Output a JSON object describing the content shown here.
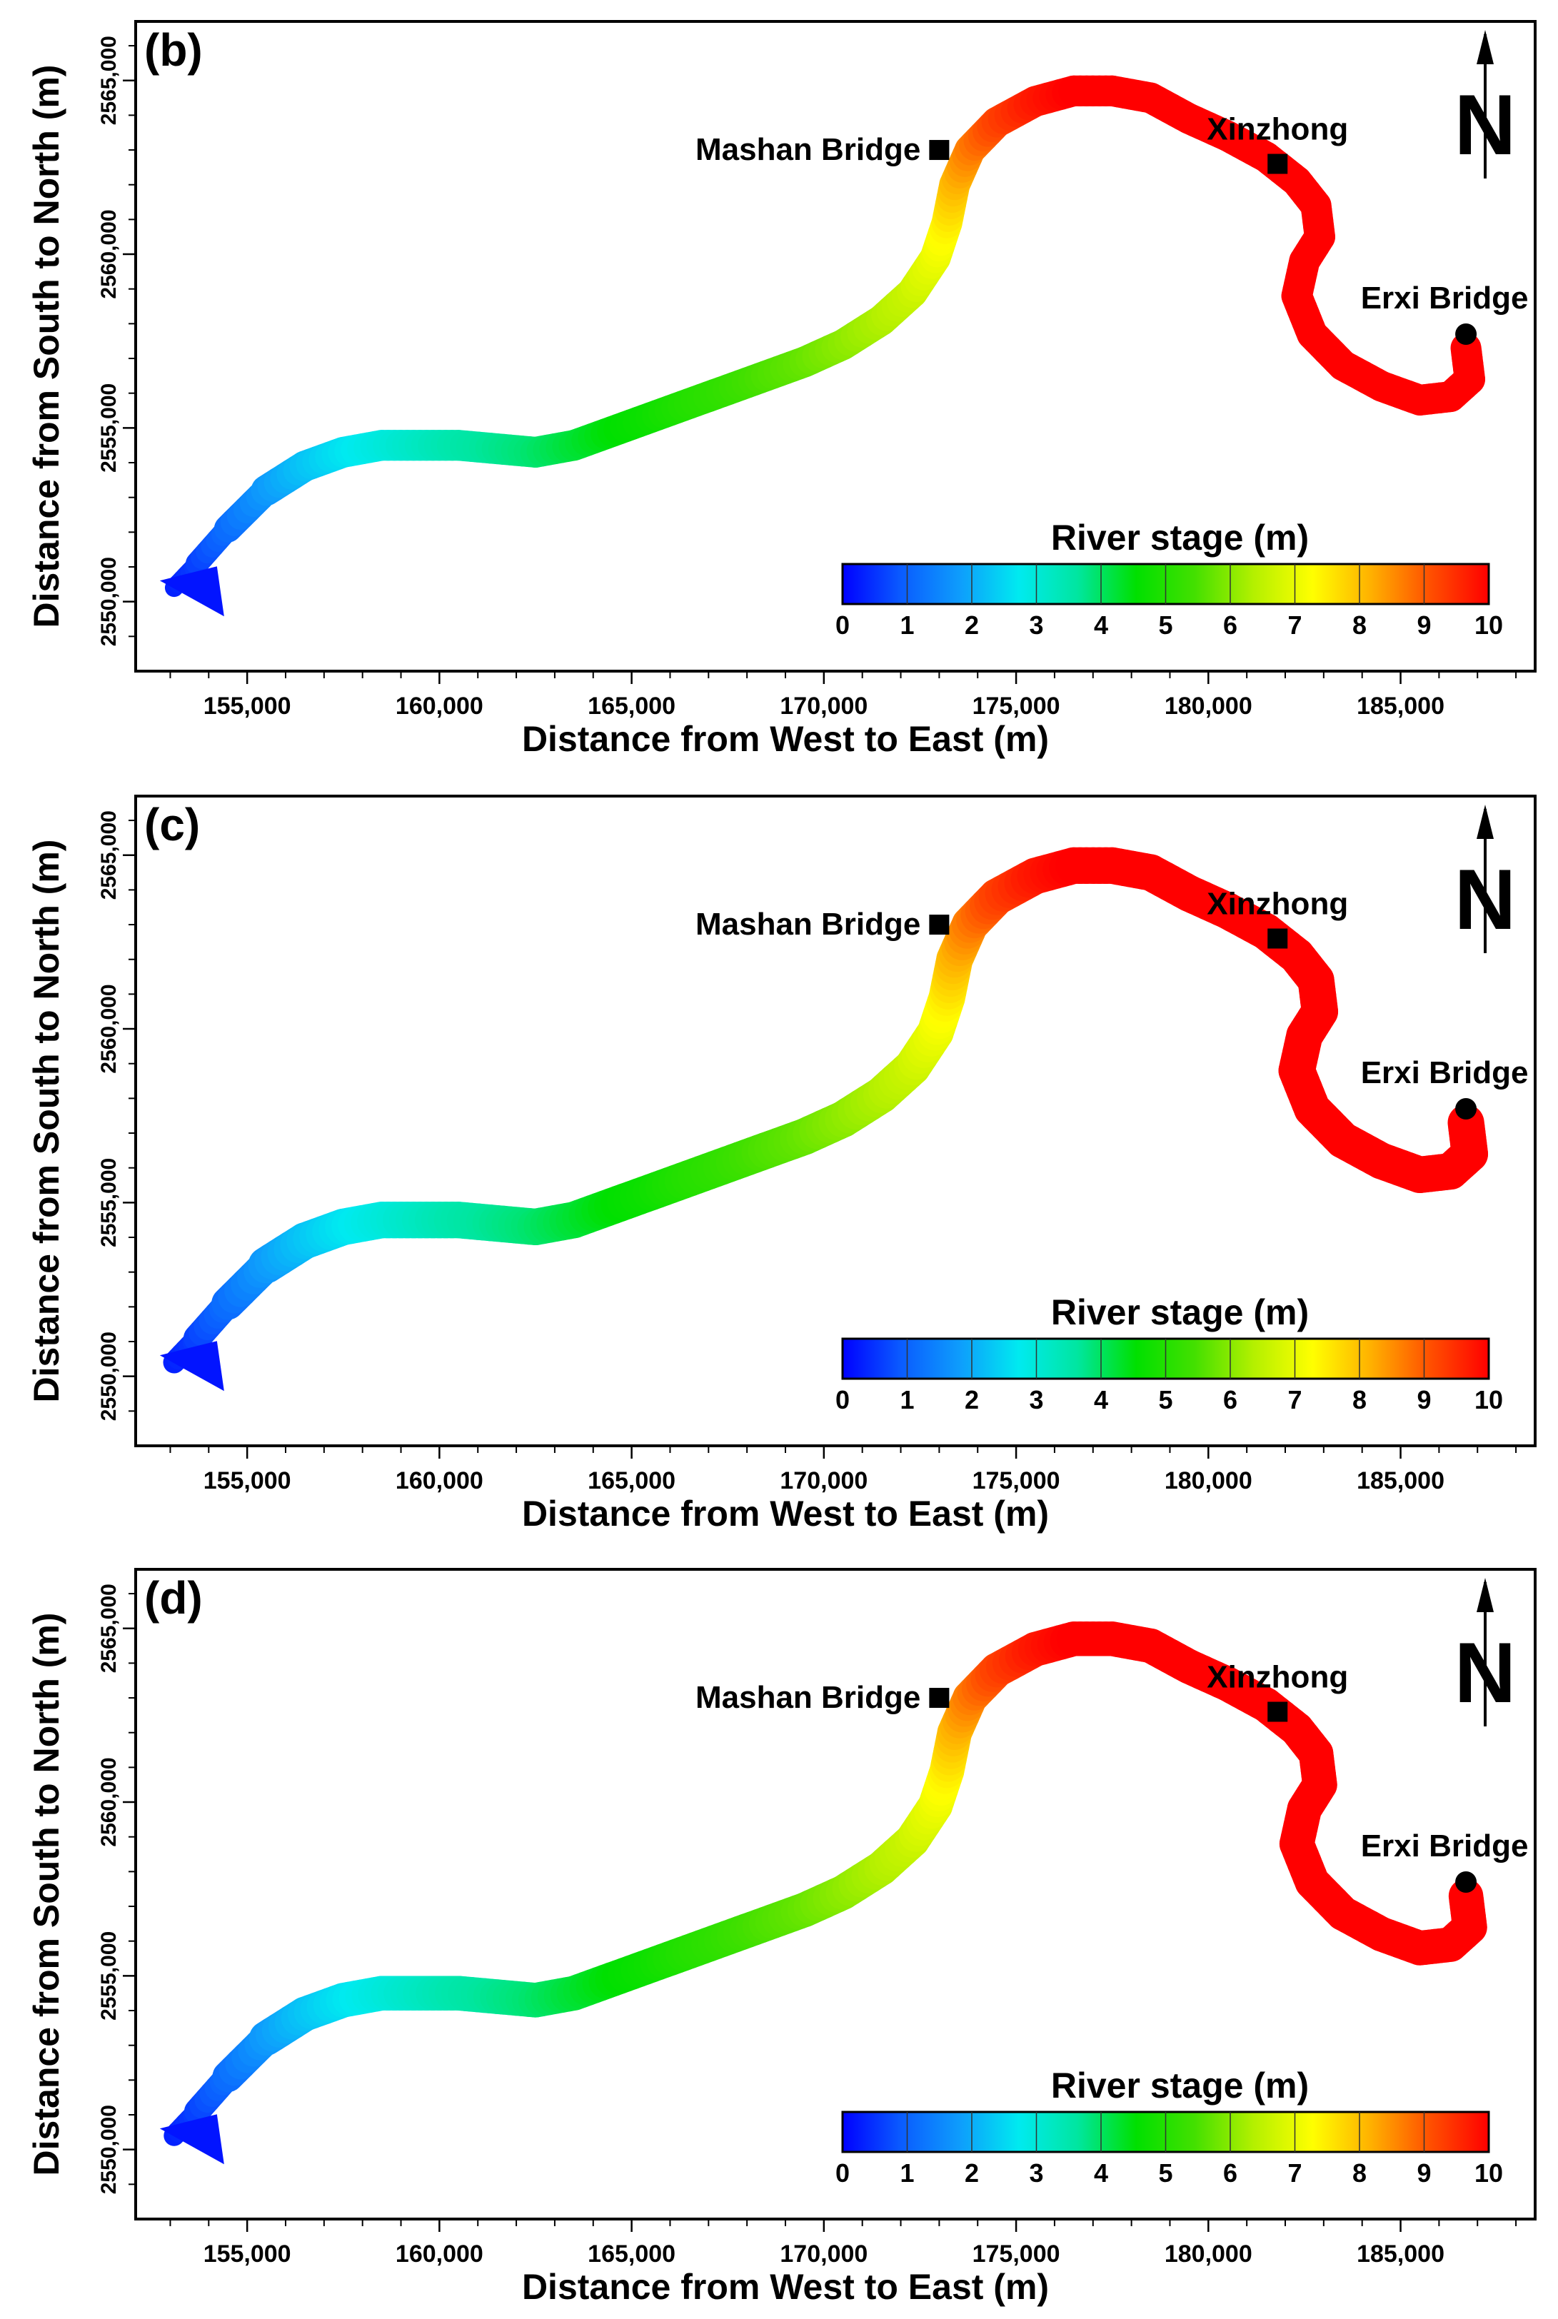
{
  "panels": [
    {
      "tag": "(b)",
      "variant": 0
    },
    {
      "tag": "(c)",
      "variant": 1
    },
    {
      "tag": "(d)",
      "variant": 2
    }
  ],
  "axes": {
    "xlabel": "Distance from West to East (m)",
    "ylabel": "Distance from  South to North (m)",
    "x_ticks": [
      155000,
      160000,
      165000,
      170000,
      175000,
      180000,
      185000
    ],
    "x_tick_labels": [
      "155,000",
      "160,000",
      "165,000",
      "170,000",
      "175,000",
      "180,000",
      "185,000"
    ],
    "y_ticks": [
      2550000,
      2555000,
      2560000,
      2565000
    ],
    "y_tick_labels": [
      "2550,000",
      "2555,000",
      "2560,000",
      "2565,000"
    ],
    "xlim": [
      152100,
      188500
    ],
    "ylim": [
      2548000,
      2566700
    ]
  },
  "places": [
    {
      "name": "Mashan Bridge",
      "x": 173000,
      "y": 2563000,
      "marker": "square"
    },
    {
      "name": "Xinzhong",
      "x": 181800,
      "y": 2562600,
      "marker": "square"
    },
    {
      "name": "Erxi Bridge",
      "x": 186700,
      "y": 2557700,
      "marker": "circle"
    }
  ],
  "north_arrow": {
    "label": "N"
  },
  "colorbar": {
    "title": "River stage (m)",
    "ticks": [
      "0",
      "1",
      "2",
      "3",
      "4",
      "5",
      "6",
      "7",
      "8",
      "9",
      "10"
    ],
    "min": 0,
    "max": 10,
    "colors": [
      "#0000ff",
      "#0a5cff",
      "#0e9dfc",
      "#00eaf0",
      "#00e6a0",
      "#00e000",
      "#44e000",
      "#b4f000",
      "#ffff00",
      "#ffb000",
      "#ff5000",
      "#ff0000"
    ]
  },
  "river": {
    "centerline": [
      [
        153100,
        2550400,
        0.3
      ],
      [
        153700,
        2551100,
        0.6
      ],
      [
        154500,
        2552100,
        1.1
      ],
      [
        155500,
        2553200,
        1.7
      ],
      [
        156500,
        2553900,
        2.2
      ],
      [
        157500,
        2554300,
        2.6
      ],
      [
        158500,
        2554500,
        2.9
      ],
      [
        159500,
        2554500,
        3.2
      ],
      [
        160500,
        2554500,
        3.5
      ],
      [
        161500,
        2554400,
        3.7
      ],
      [
        162500,
        2554300,
        3.9
      ],
      [
        163500,
        2554500,
        4.2
      ],
      [
        164500,
        2554900,
        4.5
      ],
      [
        165500,
        2555300,
        4.7
      ],
      [
        166500,
        2555700,
        5.0
      ],
      [
        167500,
        2556100,
        5.2
      ],
      [
        168500,
        2556500,
        5.5
      ],
      [
        169500,
        2556900,
        5.7
      ],
      [
        170500,
        2557400,
        6.0
      ],
      [
        171500,
        2558100,
        6.3
      ],
      [
        172300,
        2558900,
        6.6
      ],
      [
        172900,
        2559900,
        7.0
      ],
      [
        173200,
        2560900,
        7.4
      ],
      [
        173400,
        2562000,
        8.0
      ],
      [
        173800,
        2563000,
        8.6
      ],
      [
        174500,
        2563800,
        9.2
      ],
      [
        175500,
        2564400,
        9.7
      ],
      [
        176500,
        2564700,
        10
      ],
      [
        177500,
        2564700,
        10
      ],
      [
        178500,
        2564500,
        10
      ],
      [
        179500,
        2563900,
        10
      ],
      [
        180500,
        2563400,
        10
      ],
      [
        181500,
        2562800,
        10
      ],
      [
        182300,
        2562100,
        10
      ],
      [
        182800,
        2561400,
        10
      ],
      [
        182900,
        2560500,
        10
      ],
      [
        182500,
        2559800,
        10
      ],
      [
        182300,
        2558800,
        10
      ],
      [
        182700,
        2557700,
        10
      ],
      [
        183500,
        2556800,
        10
      ],
      [
        184500,
        2556200,
        10
      ],
      [
        185500,
        2555800,
        10
      ],
      [
        186300,
        2555900,
        10
      ],
      [
        186800,
        2556400,
        10
      ],
      [
        186700,
        2557300,
        10
      ]
    ],
    "width_per_variant": [
      800,
      950,
      900
    ]
  }
}
